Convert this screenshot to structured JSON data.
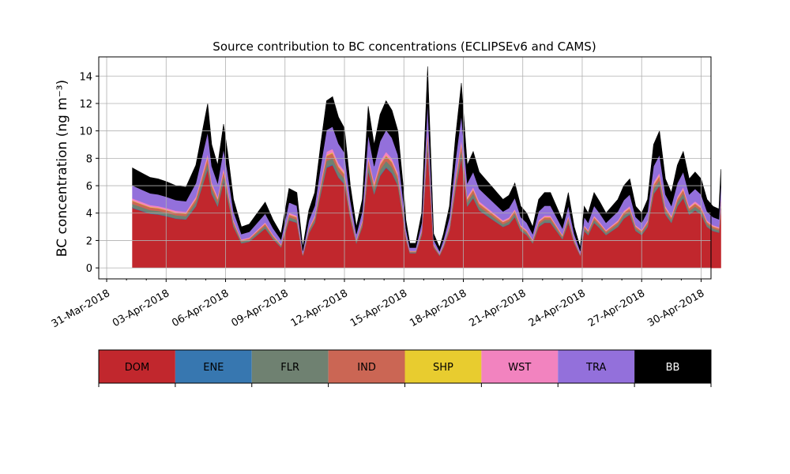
{
  "chart_data": {
    "type": "area",
    "stacked": true,
    "title": "Source contribution to BC concentrations (ECLIPSEv6 and CAMS)",
    "xlabel": "",
    "ylabel": "BC concentration (ng m⁻³)",
    "ylim": [
      -0.8,
      15.4
    ],
    "yticks": [
      0,
      2,
      4,
      6,
      8,
      10,
      12,
      14
    ],
    "xlim_days": [
      -0.4,
      30.5
    ],
    "x_tick_labels": [
      "31-Mar-2018",
      "03-Apr-2018",
      "06-Apr-2018",
      "09-Apr-2018",
      "12-Apr-2018",
      "15-Apr-2018",
      "18-Apr-2018",
      "21-Apr-2018",
      "24-Apr-2018",
      "27-Apr-2018",
      "30-Apr-2018"
    ],
    "x_tick_days": [
      0,
      3,
      6,
      9,
      12,
      15,
      18,
      21,
      24,
      27,
      30
    ],
    "grid": true,
    "x": [
      1.3,
      1.8,
      2.2,
      2.6,
      3.0,
      3.5,
      4.0,
      4.5,
      4.9,
      5.1,
      5.3,
      5.6,
      5.9,
      6.1,
      6.4,
      6.8,
      7.2,
      7.6,
      8.0,
      8.4,
      8.8,
      9.2,
      9.6,
      9.9,
      10.2,
      10.5,
      10.8,
      11.1,
      11.4,
      11.7,
      12.0,
      12.3,
      12.6,
      12.9,
      13.2,
      13.5,
      13.8,
      14.1,
      14.4,
      14.7,
      15.0,
      15.1,
      15.3,
      15.6,
      15.9,
      16.2,
      16.5,
      16.8,
      17.0,
      17.3,
      17.6,
      17.9,
      18.2,
      18.5,
      18.8,
      19.1,
      19.4,
      19.7,
      20.0,
      20.3,
      20.6,
      20.9,
      21.2,
      21.5,
      21.8,
      22.1,
      22.4,
      22.7,
      23.0,
      23.3,
      23.6,
      23.9,
      24.1,
      24.3,
      24.6,
      24.9,
      25.2,
      25.5,
      25.8,
      26.1,
      26.4,
      26.7,
      27.0,
      27.3,
      27.6,
      27.9,
      28.2,
      28.5,
      28.8,
      29.1,
      29.4,
      29.7,
      30.0,
      30.3,
      30.6,
      30.9,
      31.0
    ],
    "totals": [
      7.3,
      6.9,
      6.6,
      6.5,
      6.3,
      6.0,
      5.9,
      7.5,
      10.5,
      12.0,
      9.0,
      7.5,
      10.5,
      8.5,
      5.0,
      3.0,
      3.2,
      4.0,
      4.8,
      3.5,
      2.5,
      5.8,
      5.5,
      1.5,
      4.2,
      5.5,
      9.0,
      12.2,
      12.5,
      11.0,
      10.2,
      6.0,
      3.0,
      5.0,
      11.8,
      9.0,
      11.2,
      12.2,
      11.5,
      10.0,
      5.5,
      3.5,
      1.8,
      1.8,
      4.0,
      14.7,
      2.5,
      1.5,
      2.5,
      4.5,
      9.5,
      13.5,
      7.5,
      8.5,
      7.0,
      6.5,
      6.0,
      5.5,
      5.0,
      5.3,
      6.2,
      4.5,
      4.0,
      3.0,
      5.0,
      5.5,
      5.5,
      4.5,
      3.5,
      5.5,
      3.0,
      1.5,
      4.5,
      4.0,
      5.5,
      4.8,
      4.0,
      4.5,
      5.0,
      6.0,
      6.5,
      4.5,
      4.0,
      5.0,
      9.0,
      10.0,
      6.5,
      5.5,
      7.5,
      8.5,
      6.5,
      7.0,
      6.5,
      5.0,
      4.5,
      4.3,
      7.2
    ],
    "legend_location": "below",
    "legend_style": "colorbar",
    "series": [
      {
        "name": "DOM",
        "color": "#c1272d",
        "fraction": 0.6,
        "label_color": "#000000"
      },
      {
        "name": "ENE",
        "color": "#3777b0",
        "fraction": 0.005,
        "label_color": "#000000"
      },
      {
        "name": "FLR",
        "color": "#6f8171",
        "fraction": 0.035,
        "label_color": "#000000"
      },
      {
        "name": "IND",
        "color": "#cb6654",
        "fraction": 0.03,
        "label_color": "#000000"
      },
      {
        "name": "SHP",
        "color": "#e8cc2f",
        "fraction": 0.005,
        "label_color": "#000000"
      },
      {
        "name": "WST",
        "color": "#f283bf",
        "fraction": 0.02,
        "label_color": "#000000"
      },
      {
        "name": "TRA",
        "color": "#9370db",
        "fraction": 0.13,
        "label_color": "#000000"
      },
      {
        "name": "BB",
        "color": "#000000",
        "fraction": 0.175,
        "label_color": "#ffffff"
      }
    ]
  }
}
